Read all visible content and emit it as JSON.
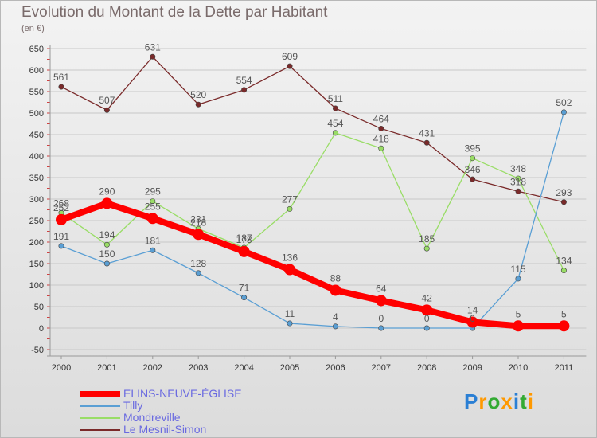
{
  "page": {
    "title": "Evolution du Montant de la Dette par Habitant",
    "subtitle": "(en €)"
  },
  "colors": {
    "elins": "#ff0000",
    "tilly": "#5a9fd4",
    "mondreville": "#99dd66",
    "mesnil": "#7a2a2a",
    "grid": "#c8c8c8",
    "axis_text": "#333333",
    "data_label": "#555555"
  },
  "chart_data": {
    "type": "line",
    "title": "Evolution du Montant de la Dette par Habitant",
    "subtitle": "(en €)",
    "x": [
      "2000",
      "2001",
      "2002",
      "2003",
      "2004",
      "2005",
      "2006",
      "2007",
      "2008",
      "2009",
      "2010",
      "2011"
    ],
    "ylim": [
      -50,
      650
    ],
    "yticks": [
      "-50",
      "0",
      "50",
      "100",
      "150",
      "200",
      "250",
      "300",
      "350",
      "400",
      "450",
      "500",
      "550",
      "600",
      "650"
    ],
    "grid": "horizontal",
    "legend_position": "bottom-left",
    "series": [
      {
        "name": "ELINS-NEUVE-ÉGLISE",
        "values": [
          252,
          290,
          255,
          218,
          178,
          136,
          88,
          64,
          42,
          14,
          5,
          5
        ],
        "color": "#ff0000"
      },
      {
        "name": "Tilly",
        "values": [
          191,
          150,
          181,
          128,
          71,
          11,
          4,
          0,
          0,
          0,
          115,
          502
        ],
        "color": "#5a9fd4"
      },
      {
        "name": "Mondreville",
        "values": [
          268,
          194,
          295,
          231,
          187,
          277,
          454,
          418,
          185,
          395,
          348,
          134
        ],
        "color": "#99dd66"
      },
      {
        "name": "Le Mesnil-Simon",
        "values": [
          561,
          507,
          631,
          520,
          554,
          609,
          511,
          464,
          431,
          346,
          318,
          293
        ],
        "color": "#7a2a2a"
      }
    ]
  },
  "logo": {
    "letters": [
      "P",
      "r",
      "o",
      "x",
      "i",
      "t",
      "i"
    ],
    "colors": [
      "#2a7fd4",
      "#ff9900",
      "#33aa33",
      "#ff9900",
      "#2a7fd4",
      "#33aa33",
      "#ff9900"
    ]
  }
}
